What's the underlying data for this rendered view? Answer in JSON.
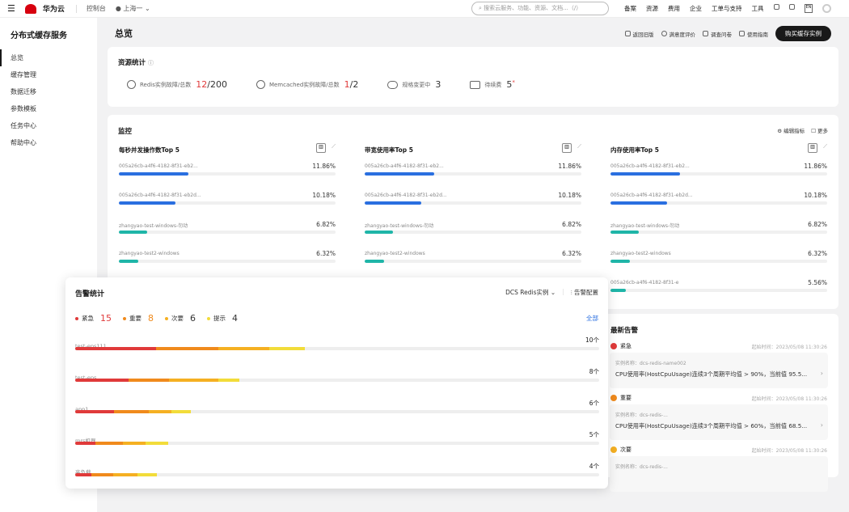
{
  "topbar": {
    "brand": "华为云",
    "console": "控制台",
    "region": "上海一",
    "search_placeholder": "搜索云服务、功能、资源、文档...（/）",
    "links": [
      "备案",
      "资源",
      "费用",
      "企业",
      "工单与支持",
      "工具"
    ],
    "lang": "EN"
  },
  "sidebar": {
    "title": "分布式缓存服务",
    "items": [
      "总览",
      "缓存管理",
      "数据迁移",
      "参数模板",
      "任务中心",
      "帮助中心"
    ]
  },
  "header": {
    "title": "总览",
    "actions": [
      "返回旧版",
      "满意度评价",
      "调查问卷",
      "使用指南"
    ],
    "primary": "购买缓存实例"
  },
  "resources": {
    "title": "资源统计",
    "items": [
      {
        "label": "Redis实例故障/总数",
        "fault": "12",
        "total": "/200"
      },
      {
        "label": "Memcached实例故障/总数",
        "fault": "1",
        "total": "/2"
      },
      {
        "label": "规格变更中",
        "fault": "",
        "total": "3"
      },
      {
        "label": "待续费",
        "fault": "",
        "total": "5"
      }
    ]
  },
  "monitor": {
    "title": "监控",
    "edit": "编辑指标",
    "more": "更多",
    "columns": [
      {
        "title": "每秒并发操作数Top 5",
        "items": [
          {
            "name": "005a26cb-a4f6-4182-8f31-eb2...",
            "value": "11.86%",
            "fill": 32,
            "color": "#2a6fe0"
          },
          {
            "name": "005a26cb-a4f6-4182-8f31-eb2d...",
            "value": "10.18%",
            "fill": 26,
            "color": "#2a6fe0"
          },
          {
            "name": "zhangyao-test-windows-勿动",
            "value": "6.82%",
            "fill": 13,
            "color": "#1fb5a8"
          },
          {
            "name": "zhangyao-test2-windows",
            "value": "6.32%",
            "fill": 9,
            "color": "#1fb5a8"
          }
        ]
      },
      {
        "title": "带宽使用率Top 5",
        "items": [
          {
            "name": "005a26cb-a4f6-4182-8f31-eb2...",
            "value": "11.86%",
            "fill": 32,
            "color": "#2a6fe0"
          },
          {
            "name": "005a26cb-a4f6-4182-8f31-eb2d...",
            "value": "10.18%",
            "fill": 26,
            "color": "#2a6fe0"
          },
          {
            "name": "zhangyao-test-windows-勿动",
            "value": "6.82%",
            "fill": 13,
            "color": "#1fb5a8"
          },
          {
            "name": "zhangyao-test2-windows",
            "value": "6.32%",
            "fill": 9,
            "color": "#1fb5a8"
          }
        ]
      },
      {
        "title": "内存使用率Top 5",
        "items": [
          {
            "name": "005a26cb-a4f6-4182-8f31-eb2...",
            "value": "11.86%",
            "fill": 32,
            "color": "#2a6fe0"
          },
          {
            "name": "005a26cb-a4f6-4182-8f31-eb2d...",
            "value": "10.18%",
            "fill": 26,
            "color": "#2a6fe0"
          },
          {
            "name": "zhangyao-test-windows-勿动",
            "value": "6.82%",
            "fill": 13,
            "color": "#1fb5a8"
          },
          {
            "name": "zhangyao-test2-windows",
            "value": "6.32%",
            "fill": 9,
            "color": "#1fb5a8"
          },
          {
            "name": "005a26cb-a4f6-4182-8f31-e",
            "value": "5.56%",
            "fill": 7,
            "color": "#1fb5a8"
          }
        ]
      }
    ]
  },
  "alarm_stats": {
    "title": "告警统计",
    "filter": "DCS Redis实例",
    "config": "告警配置",
    "all": "全部",
    "levels": [
      {
        "label": "紧急",
        "count": "15",
        "color": "#e03a3a"
      },
      {
        "label": "重要",
        "count": "8",
        "color": "#f08a1c"
      },
      {
        "label": "次要",
        "count": "6",
        "color": "#f5b022"
      },
      {
        "label": "提示",
        "count": "4",
        "color": "#f2dc3a"
      }
    ],
    "rows": [
      {
        "name": "test-eps111",
        "count": "10个",
        "segments": [
          15.4,
          11.9,
          9.7,
          6.8
        ]
      },
      {
        "name": "test-eps",
        "count": "8个",
        "segments": [
          10.2,
          7.7,
          9.4,
          4
        ]
      },
      {
        "name": "app1",
        "count": "6个",
        "segments": [
          7.4,
          6.6,
          4.3,
          3.7
        ]
      },
      {
        "name": "mrs机器",
        "count": "5个",
        "segments": [
          3.9,
          5.2,
          4.3,
          4.3
        ]
      },
      {
        "name": "高负载",
        "count": "4个",
        "segments": [
          3.1,
          4.2,
          4.6,
          3.7
        ]
      }
    ]
  },
  "latest": {
    "title": "最新告警",
    "items": [
      {
        "level": "紧急",
        "color": "#e03a3a",
        "time": "起始时间：2023/05/08 11:30:26",
        "instance": "实例名称：dcs-redis-name002",
        "msg": "CPU使用率(HostCpuUsage)连续3个周期平均值 > 90%，当前值 95.5..."
      },
      {
        "level": "重要",
        "color": "#f08a1c",
        "time": "起始时间：2023/05/08 11:30:26",
        "instance": "实例名称：dcs-redis-...",
        "msg": "CPU使用率(HostCpuUsage)连续3个周期平均值 > 60%，当前值 68.5..."
      },
      {
        "level": "次要",
        "color": "#f5b022",
        "time": "起始时间：2023/05/08 11:30:26",
        "instance": "实例名称：dcs-redis-...",
        "msg": ""
      }
    ]
  }
}
